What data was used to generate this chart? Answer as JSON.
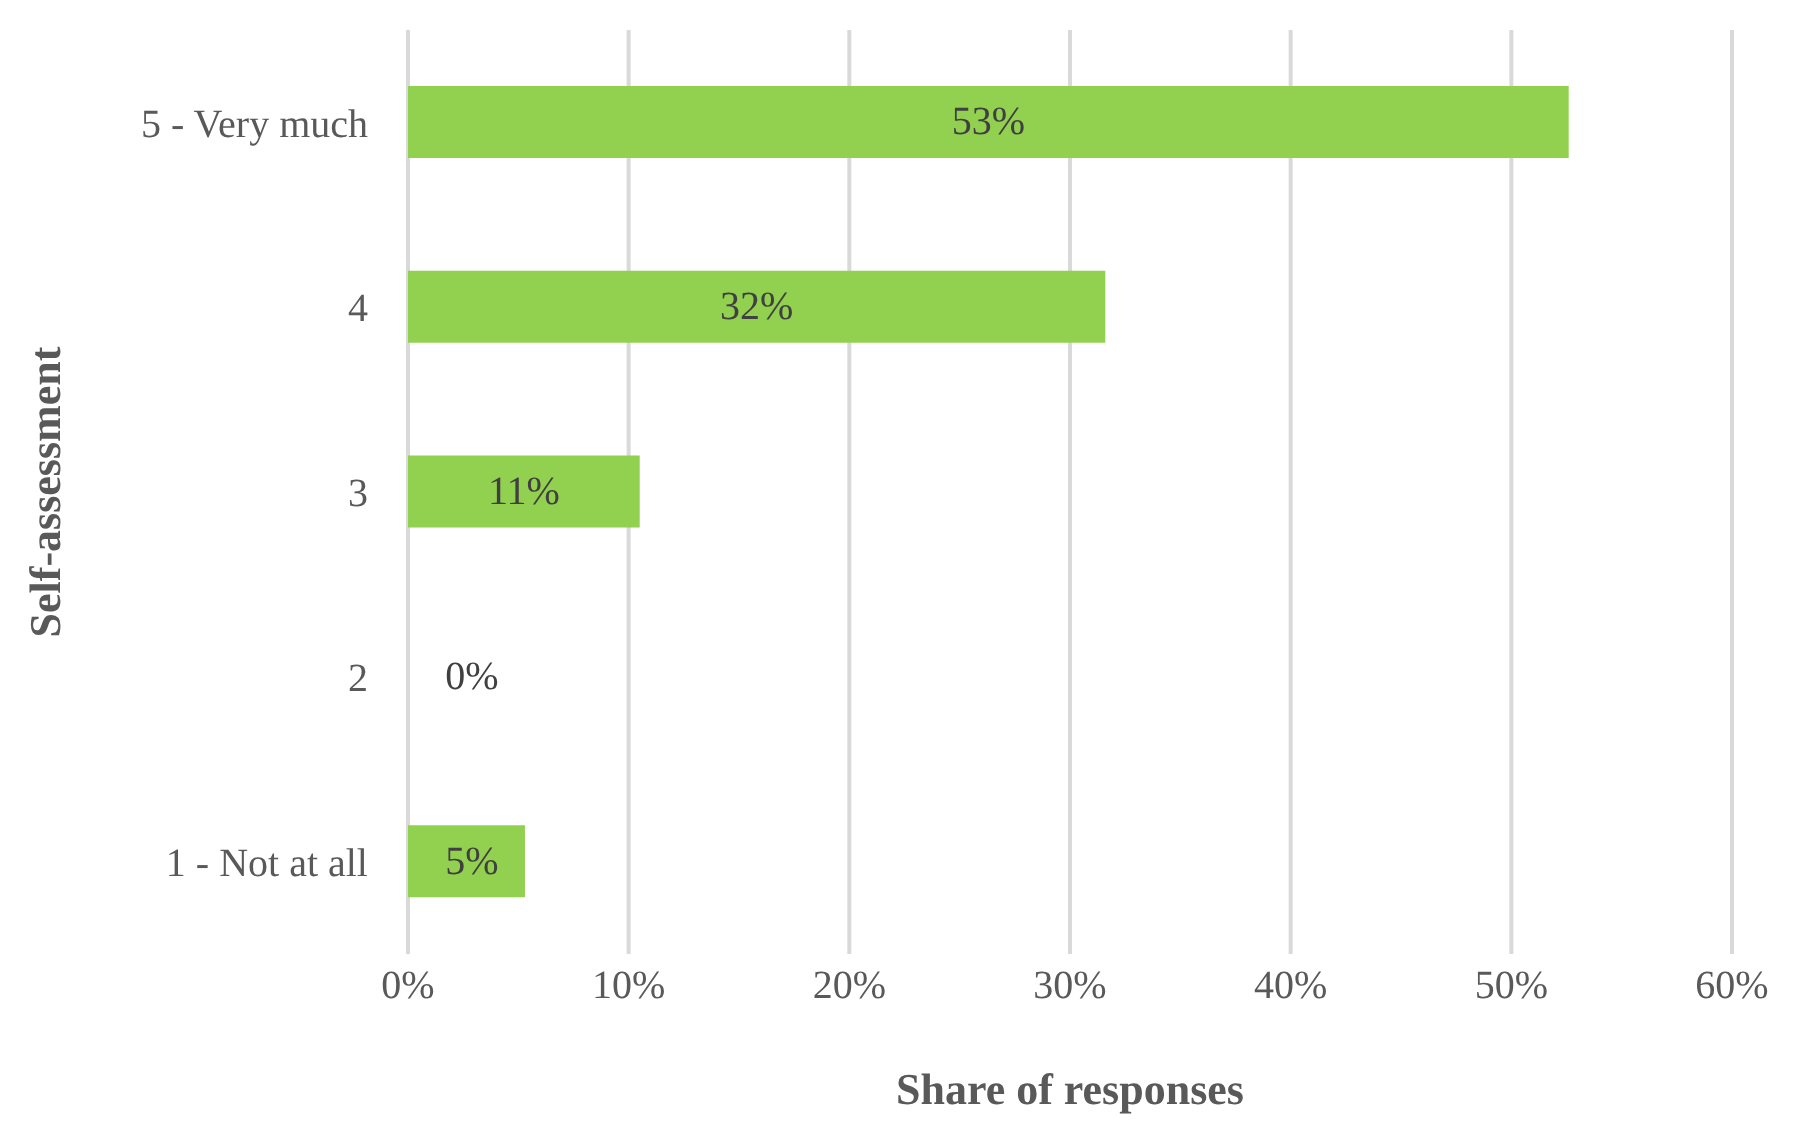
{
  "chart_data": {
    "type": "bar",
    "orientation": "horizontal",
    "xlabel": "Share of responses",
    "ylabel": "Self-assessment",
    "categories": [
      "5 - Very much",
      "4",
      "3",
      "2",
      "1 - Not at all"
    ],
    "values": [
      52.6,
      31.6,
      10.5,
      0,
      5.3
    ],
    "value_labels": [
      "53%",
      "32%",
      "11%",
      "0%",
      "5%"
    ],
    "color": "#92d050",
    "xlim": [
      0,
      60
    ],
    "xticks": [
      {
        "value": 0,
        "label": "0%"
      },
      {
        "value": 10,
        "label": "10%"
      },
      {
        "value": 20,
        "label": "20%"
      },
      {
        "value": 30,
        "label": "30%"
      },
      {
        "value": 40,
        "label": "40%"
      },
      {
        "value": 50,
        "label": "50%"
      },
      {
        "value": 60,
        "label": "60%"
      }
    ],
    "grid": "x"
  }
}
